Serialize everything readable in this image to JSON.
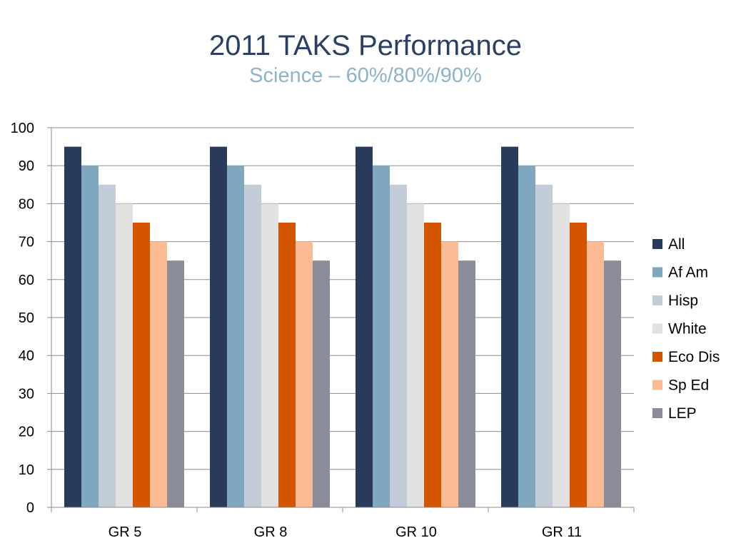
{
  "slide": {
    "title": "2011 TAKS Performance",
    "subtitle": "Science – 60%/80%/90%"
  },
  "chart_data": {
    "type": "bar",
    "title": "",
    "xlabel": "",
    "ylabel": "",
    "ylim": [
      0,
      100
    ],
    "y_ticks": [
      0,
      10,
      20,
      30,
      40,
      50,
      60,
      70,
      80,
      90,
      100
    ],
    "grid": "horizontal",
    "legend_position": "right",
    "categories": [
      "GR 5",
      "GR 8",
      "GR 10",
      "GR 11"
    ],
    "series": [
      {
        "name": "All",
        "color": "#2a3a5c",
        "values": [
          95,
          95,
          95,
          95
        ]
      },
      {
        "name": "Af Am",
        "color": "#7fa7bd",
        "values": [
          90,
          90,
          90,
          90
        ]
      },
      {
        "name": "Hisp",
        "color": "#c3cdd9",
        "values": [
          85,
          85,
          85,
          85
        ]
      },
      {
        "name": "White",
        "color": "#e1e1e1",
        "values": [
          80,
          80,
          80,
          80
        ]
      },
      {
        "name": "Eco Dis",
        "color": "#d45500",
        "values": [
          75,
          75,
          75,
          75
        ]
      },
      {
        "name": "Sp Ed",
        "color": "#fdbb94",
        "values": [
          70,
          70,
          70,
          70
        ]
      },
      {
        "name": "LEP",
        "color": "#8a8c99",
        "values": [
          65,
          65,
          65,
          65
        ]
      }
    ]
  }
}
